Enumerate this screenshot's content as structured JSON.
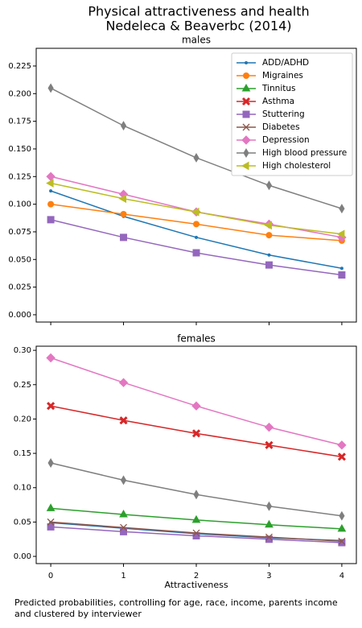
{
  "title": [
    "Physical attractiveness and health",
    "Nedeleca & Beaverbc (2014)"
  ],
  "caption": [
    "Predicted probabilities, controlling for age, race, income, parents income",
    "and clustered by interviewer"
  ],
  "chart_data": [
    {
      "type": "line",
      "title": "males",
      "x": [
        0,
        1,
        2,
        3,
        4
      ],
      "xlim": [
        -0.2,
        4.2
      ],
      "xticks": [
        0,
        1,
        2,
        3,
        4
      ],
      "sharex": true,
      "ylim": [
        -0.0066,
        0.241
      ],
      "yticks": [
        {
          "value": 0,
          "label": "0.000"
        },
        {
          "value": 0.025,
          "label": "0.025"
        },
        {
          "value": 0.05,
          "label": "0.050"
        },
        {
          "value": 0.075,
          "label": "0.075"
        },
        {
          "value": 0.1,
          "label": "0.100"
        },
        {
          "value": 0.125,
          "label": "0.125"
        },
        {
          "value": 0.15,
          "label": "0.150"
        },
        {
          "value": 0.175,
          "label": "0.175"
        },
        {
          "value": 0.2,
          "label": "0.200"
        },
        {
          "value": 0.225,
          "label": "0.225"
        }
      ],
      "legend": "upper right",
      "series": [
        {
          "name": "ADD/ADHD",
          "color": "#1f77b4",
          "marker": "point",
          "values": [
            0.112,
            0.089,
            0.07,
            0.054,
            0.042
          ]
        },
        {
          "name": "Migraines",
          "color": "#ff7f0e",
          "marker": "circle",
          "values": [
            0.1,
            0.091,
            0.082,
            0.072,
            0.067
          ]
        },
        {
          "name": "Tinnitus",
          "color": "#2ca02c",
          "marker": "triangle-up",
          "values": [
            null,
            null,
            null,
            null,
            null
          ]
        },
        {
          "name": "Asthma",
          "color": "#d62728",
          "marker": "x-filled",
          "values": [
            null,
            null,
            null,
            null,
            null
          ]
        },
        {
          "name": "Stuttering",
          "color": "#9467bd",
          "marker": "square",
          "values": [
            0.086,
            0.07,
            0.056,
            0.045,
            0.036
          ]
        },
        {
          "name": "Diabetes",
          "color": "#8c564b",
          "marker": "x",
          "values": [
            null,
            null,
            null,
            null,
            null
          ]
        },
        {
          "name": "Depression",
          "color": "#e377c2",
          "marker": "diamond",
          "values": [
            0.125,
            0.109,
            0.093,
            0.082,
            0.07
          ]
        },
        {
          "name": "High blood pressure",
          "color": "#7f7f7f",
          "marker": "thin-diamond",
          "values": [
            0.205,
            0.171,
            0.142,
            0.117,
            0.096
          ]
        },
        {
          "name": "High cholesterol",
          "color": "#bcbd22",
          "marker": "triangle-left",
          "values": [
            0.119,
            0.105,
            0.093,
            0.081,
            0.073
          ]
        }
      ]
    },
    {
      "type": "line",
      "title": "females",
      "x": [
        0,
        1,
        2,
        3,
        4
      ],
      "x_label": "Attractiveness",
      "xlim": [
        -0.2,
        4.2
      ],
      "xticks": [
        0,
        1,
        2,
        3,
        4
      ],
      "ylim": [
        -0.0105,
        0.306
      ],
      "yticks": [
        {
          "value": 0,
          "label": "0.00"
        },
        {
          "value": 0.05,
          "label": "0.05"
        },
        {
          "value": 0.1,
          "label": "0.10"
        },
        {
          "value": 0.15,
          "label": "0.15"
        },
        {
          "value": 0.2,
          "label": "0.20"
        },
        {
          "value": 0.25,
          "label": "0.25"
        },
        {
          "value": 0.3,
          "label": "0.30"
        }
      ],
      "series": [
        {
          "name": "ADD/ADHD",
          "color": "#1f77b4",
          "marker": "point",
          "values": [
            0.049,
            0.041,
            0.033,
            0.027,
            0.023
          ]
        },
        {
          "name": "Tinnitus",
          "color": "#2ca02c",
          "marker": "triangle-up",
          "values": [
            0.07,
            0.061,
            0.053,
            0.046,
            0.04
          ]
        },
        {
          "name": "Asthma",
          "color": "#d62728",
          "marker": "x-filled",
          "values": [
            0.219,
            0.198,
            0.179,
            0.162,
            0.145
          ]
        },
        {
          "name": "Stuttering",
          "color": "#9467bd",
          "marker": "square",
          "values": [
            0.043,
            0.036,
            0.03,
            0.025,
            0.02
          ]
        },
        {
          "name": "Diabetes",
          "color": "#8c564b",
          "marker": "x",
          "values": [
            0.05,
            0.042,
            0.034,
            0.028,
            0.022
          ]
        },
        {
          "name": "Depression",
          "color": "#e377c2",
          "marker": "diamond",
          "values": [
            0.289,
            0.253,
            0.219,
            0.188,
            0.162
          ]
        },
        {
          "name": "High blood pressure",
          "color": "#7f7f7f",
          "marker": "thin-diamond",
          "values": [
            0.136,
            0.111,
            0.09,
            0.073,
            0.059
          ]
        }
      ]
    }
  ]
}
